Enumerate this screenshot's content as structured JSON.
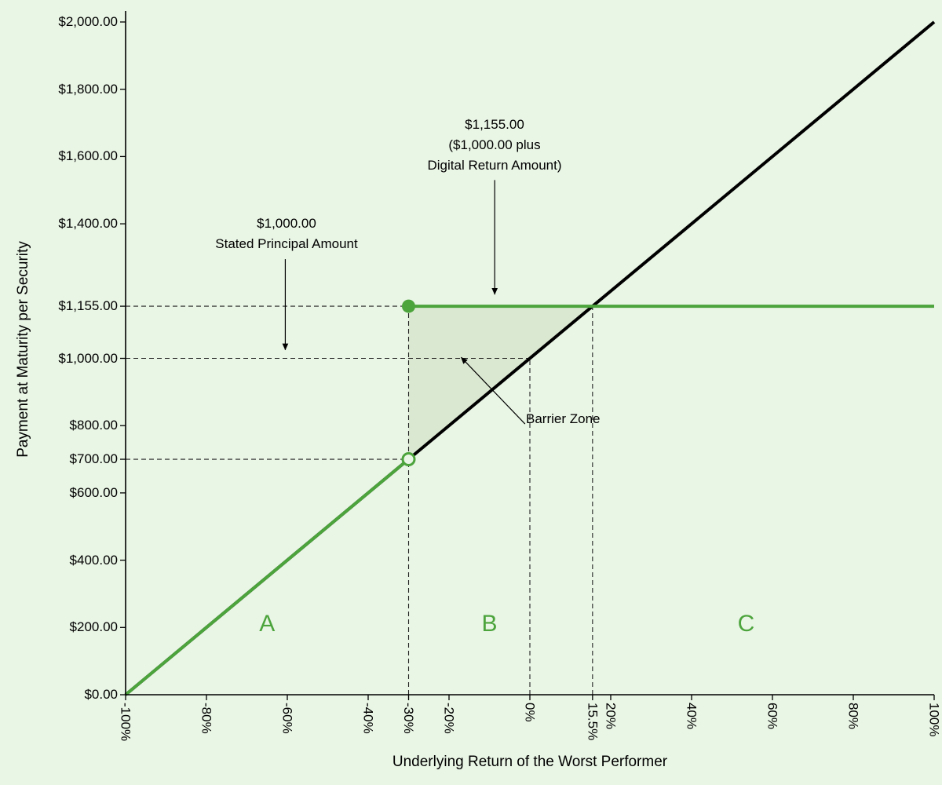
{
  "background": "#e9f5e5",
  "accent_green": "#4ca43c",
  "chart_data": {
    "type": "line",
    "title": "",
    "xlabel": "Underlying Return of the Worst Performer",
    "ylabel": "Payment at Maturity per Security",
    "xlim": [
      -100,
      100
    ],
    "ylim": [
      0,
      2000
    ],
    "grid": "off",
    "x_ticks": [
      {
        "value": -100,
        "label": "-100%"
      },
      {
        "value": -80,
        "label": "-80%"
      },
      {
        "value": -60,
        "label": "-60%"
      },
      {
        "value": -40,
        "label": "-40%"
      },
      {
        "value": -30,
        "label": "-30%"
      },
      {
        "value": -20,
        "label": "-20%"
      },
      {
        "value": 0,
        "label": "0%"
      },
      {
        "value": 15.5,
        "label": "15.5%"
      },
      {
        "value": 20,
        "label": "20%"
      },
      {
        "value": 40,
        "label": "40%"
      },
      {
        "value": 60,
        "label": "60%"
      },
      {
        "value": 80,
        "label": "80%"
      },
      {
        "value": 100,
        "label": "100%"
      }
    ],
    "y_ticks": [
      {
        "value": 2000,
        "label": "$2,000.00"
      },
      {
        "value": 1800,
        "label": "$1,800.00"
      },
      {
        "value": 1600,
        "label": "$1,600.00"
      },
      {
        "value": 1400,
        "label": "$1,400.00"
      },
      {
        "value": 1155,
        "label": "$1,155.00"
      },
      {
        "value": 1000,
        "label": "$1,000.00"
      },
      {
        "value": 800,
        "label": "$800.00"
      },
      {
        "value": 700,
        "label": "$700.00"
      },
      {
        "value": 600,
        "label": "$600.00"
      },
      {
        "value": 400,
        "label": "$400.00"
      },
      {
        "value": 200,
        "label": "$200.00"
      },
      {
        "value": 0,
        "label": "$0.00"
      }
    ],
    "series": [
      {
        "name": "underlying-direct-payoff",
        "color": "#000000",
        "width": 4,
        "points": [
          [
            -100,
            0
          ],
          [
            100,
            2000
          ]
        ]
      },
      {
        "name": "payment-at-maturity",
        "color": "#4ca43c",
        "width": 4,
        "segments": [
          [
            [
              -100,
              0
            ],
            [
              -30,
              700
            ]
          ],
          [
            [
              -30,
              1155
            ],
            [
              100,
              1155
            ]
          ]
        ],
        "open_point": [
          -30,
          700
        ],
        "filled_point": [
          -30,
          1155
        ]
      }
    ],
    "key_values": {
      "barrier_level_pct": -30,
      "payment_at_barrier": 700,
      "stated_principal": 1000,
      "digital_payment": 1155,
      "digital_return_threshold_pct": 15.5
    },
    "guides": {
      "horizontal": [
        {
          "y": 1155,
          "x_end": -30
        },
        {
          "y": 1000,
          "x_end": 0
        },
        {
          "y": 700,
          "x_end": -30
        }
      ],
      "vertical": [
        {
          "x": -30,
          "y_end": 1155
        },
        {
          "x": 0,
          "y_end": 1000
        },
        {
          "x": 15.5,
          "y_end": 1155
        }
      ]
    },
    "barrier_zone": {
      "polygon": [
        [
          -30,
          1155
        ],
        [
          15.5,
          1155
        ],
        [
          -30,
          700
        ]
      ],
      "fill": "rgba(130,150,80,0.13)"
    },
    "annotations": [
      {
        "id": "digital-return",
        "lines": [
          "$1,155.00",
          "($1,000.00 plus",
          "Digital Return Amount)"
        ],
        "arrow": {
          "x1": -8.7,
          "y1": 1530,
          "x2": -8.7,
          "y2": 1190
        }
      },
      {
        "id": "stated-principal",
        "lines": [
          "$1,000.00",
          "Stated Principal Amount"
        ],
        "arrow": {
          "x1": -60.5,
          "y1": 1295,
          "x2": -60.5,
          "y2": 1025
        }
      },
      {
        "id": "barrier-zone",
        "lines": [
          "Barrier Zone"
        ],
        "arrow": {
          "x1": -1.2,
          "y1": 805,
          "x2": -17,
          "y2": 1003
        }
      }
    ],
    "region_labels": [
      {
        "label": "A",
        "x": -65,
        "y": 200
      },
      {
        "label": "B",
        "x": -10,
        "y": 200
      },
      {
        "label": "C",
        "x": 53.5,
        "y": 200
      }
    ]
  }
}
